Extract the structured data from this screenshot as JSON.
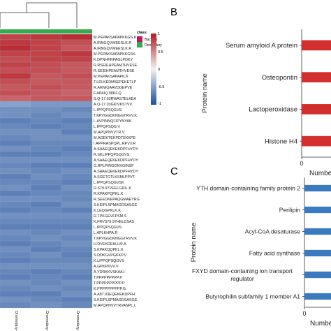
{
  "panel_labels": {
    "b": "B",
    "c": "C"
  },
  "heatmap": {
    "legend_title": "class",
    "legend_items": [
      {
        "label": "Bactrian",
        "color": "#c2185b"
      },
      {
        "label": "Dromedary",
        "color": "#3aa84e"
      }
    ],
    "colorbar_ticks": [
      "1",
      "0.5",
      "0",
      "-0.5",
      "-1"
    ],
    "columns": [
      "Dromedary-3",
      "Dromedary-1",
      "Dromedary-2"
    ]
  },
  "chart_data": [
    {
      "type": "heatmap",
      "color_scale": {
        "min": -1,
        "max": 1,
        "low": "#1c4f9e",
        "mid": "#f2f2f2",
        "high": "#b5171e"
      },
      "columns": [
        "Dromedary-3",
        "Dromedary-1",
        "Dromedary-2"
      ],
      "rows": [
        "M.PEPAKSAPAPKKGS.K",
        "A.IRNGQVWEESLK.R",
        "A.IRNGQVWEESLK.R",
        "M.PEPAKSAPAPKKGSK.",
        "K.DPNHFRPAGLPDKY",
        "R.RSEIEHPEAMTHVESE",
        "R.SEIEHPEAMTHVESE",
        "M.PEPAKSAPAPK.K",
        "T.LDLKEDMSEPEKETLP",
        "R.ARNIQAAVDGEPVE",
        "F.APAIQ.98KF.Q",
        "S.Q-17.03RWASTELKEA",
        "A.Q-17.03GKIVKSTVV.",
        "L.IPPQPSQGVS",
        "T.KPVGGDKNGGTRVV.K",
        "L.AVPINNQFIPYNYAK",
        "L.IPPQPSQG.V",
        "M.APQPNVVTR.V",
        "M.AGEKTEKPDTEKKPE",
        "I.APPRASPQPL.RPVV.R",
        "A.SAAEQEKEKDPFHYDY",
        "R.SKLIPPQPSQGVS",
        "A.SAAEQEKEKDPFHYDY",
        "G.RPLPIRGGNVGINSF",
        "A.SAAEQEKEKDPFHYDY",
        "A.SGETGTLKSMLPPVT",
        "L.IPPQPSQGVSK",
        "R.S79.97VEELGRIL.K",
        "R.KPAKPQPKL.K",
        "R.SEEDKEPAQGMAEYRG",
        "S.KEIPLSPMAGDSASGE",
        "K.LEQGPKLK.K",
        "R.TPKGEVFPSM.S",
        "K.FRVS79.97HELDSAS",
        "L.IPPQPSQGVS",
        "L.APLKHPA.R",
        "T.KPVGGDKNGGTRVV.K",
        "H.DVEKDEKLLM.A",
        "S.KPAKQQPKL.K",
        "S.DDKGVPGKKP.V",
        "K.LIPPQPSQGVS",
        "A.GPKPKVV.V",
        "A.YDRKKVSKAA.I",
        "T.PPPPPPPPP.P",
        "T.PPPPPPPPPP.P",
        "K.PPPPPPPPPP.G",
        "A.A87.03EQEKEKDPFH",
        "S.KEIPLSPMAGDSASGE",
        "M.APQPNVVTRVANPL.L"
      ],
      "values": [
        [
          0.8,
          0.85,
          0.9
        ],
        [
          0.85,
          0.8,
          0.75
        ],
        [
          0.9,
          0.8,
          0.7
        ],
        [
          0.8,
          0.8,
          0.85
        ],
        [
          0.75,
          0.8,
          0.8
        ],
        [
          0.8,
          0.75,
          0.7
        ],
        [
          0.75,
          0.75,
          0.7
        ],
        [
          0.85,
          0.7,
          0.75
        ],
        [
          0.75,
          0.7,
          0.7
        ],
        [
          0.7,
          0.75,
          0.7
        ],
        [
          0.75,
          0.7,
          0.65
        ],
        [
          0.65,
          0.7,
          0.7
        ],
        [
          -0.5,
          -0.55,
          -0.55
        ],
        [
          -0.6,
          -0.6,
          -0.65
        ],
        [
          -0.6,
          -0.65,
          -0.6
        ],
        [
          -0.7,
          -0.65,
          -0.7
        ],
        [
          -0.65,
          -0.7,
          -0.65
        ],
        [
          -0.6,
          -0.6,
          -0.7
        ],
        [
          -0.65,
          -0.6,
          -0.6
        ],
        [
          -0.7,
          -0.65,
          -0.65
        ],
        [
          -0.6,
          -0.65,
          -0.7
        ],
        [
          -0.7,
          -0.7,
          -0.65
        ],
        [
          -0.6,
          -0.6,
          -0.6
        ],
        [
          -0.65,
          -0.7,
          -0.7
        ],
        [
          -0.6,
          -0.65,
          -0.6
        ],
        [
          -0.7,
          -0.6,
          -0.65
        ],
        [
          -0.65,
          -0.65,
          -0.7
        ],
        [
          -0.6,
          -0.7,
          -0.6
        ],
        [
          -0.7,
          -0.65,
          -0.65
        ],
        [
          -0.6,
          -0.6,
          -0.65
        ],
        [
          -0.65,
          -0.7,
          -0.6
        ],
        [
          -0.7,
          -0.65,
          -0.7
        ],
        [
          -0.6,
          -0.6,
          -0.6
        ],
        [
          -0.65,
          -0.65,
          -0.65
        ],
        [
          -0.7,
          -0.7,
          -0.7
        ],
        [
          -0.6,
          -0.65,
          -0.6
        ],
        [
          -0.65,
          -0.6,
          -0.65
        ],
        [
          -0.7,
          -0.65,
          -0.6
        ],
        [
          -0.6,
          -0.7,
          -0.65
        ],
        [
          -0.65,
          -0.6,
          -0.7
        ],
        [
          -0.7,
          -0.65,
          -0.65
        ],
        [
          -0.6,
          -0.6,
          -0.6
        ],
        [
          -0.65,
          -0.7,
          -0.65
        ],
        [
          -0.7,
          -0.65,
          -0.7
        ],
        [
          -0.6,
          -0.65,
          -0.6
        ],
        [
          -0.65,
          -0.6,
          -0.65
        ],
        [
          -0.7,
          -0.7,
          -0.6
        ],
        [
          -0.6,
          -0.65,
          -0.7
        ],
        [
          -0.65,
          -0.6,
          -0.65
        ]
      ]
    },
    {
      "type": "bar",
      "orientation": "horizontal",
      "categories": [
        "Serum amyloid A protein",
        "Osteopontin",
        "Lactoperoxidase",
        "Histone H4"
      ],
      "values": [
        1,
        1,
        1,
        1
      ],
      "xlabel": "Numbe",
      "ylabel": "Protein name",
      "xticks": [
        "0"
      ],
      "xlim": [
        0,
        1
      ],
      "color": "#d32f2f"
    },
    {
      "type": "bar",
      "orientation": "horizontal",
      "categories": [
        "YTH domain-containing family protein 2",
        "Perilipin",
        "Acyl-CoA desaturase",
        "Fatty acid synthase",
        "FXYD domain-containing ion transport regulator",
        "Butyrophilin subfamily 1 member A1"
      ],
      "values": [
        1,
        1,
        1,
        1,
        1,
        1
      ],
      "xlabel": "Numbe",
      "ylabel": "Protein name",
      "xticks": [
        "0"
      ],
      "xlim": [
        0,
        1
      ],
      "color": "#3a7bbf"
    }
  ]
}
